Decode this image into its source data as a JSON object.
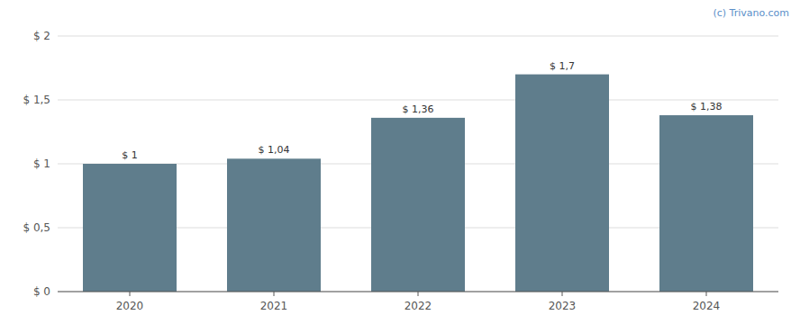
{
  "chart_data": {
    "type": "bar",
    "categories": [
      "2020",
      "2021",
      "2022",
      "2023",
      "2024"
    ],
    "values": [
      1.0,
      1.04,
      1.36,
      1.7,
      1.38
    ],
    "value_labels": [
      "$ 1",
      "$ 1,04",
      "$ 1,36",
      "$ 1,7",
      "$ 1,38"
    ],
    "color": "#5f7d8c",
    "ylim": [
      0,
      2.0
    ],
    "yticks": [
      {
        "value": 0,
        "label": "$ 0"
      },
      {
        "value": 0.5,
        "label": "$ 0,5"
      },
      {
        "value": 1.0,
        "label": "$ 1"
      },
      {
        "value": 1.5,
        "label": "$ 1,5"
      },
      {
        "value": 2.0,
        "label": "$ 2"
      }
    ],
    "grid": true,
    "data_labels": true,
    "annotations": [
      "(c) Trivano.com"
    ]
  }
}
